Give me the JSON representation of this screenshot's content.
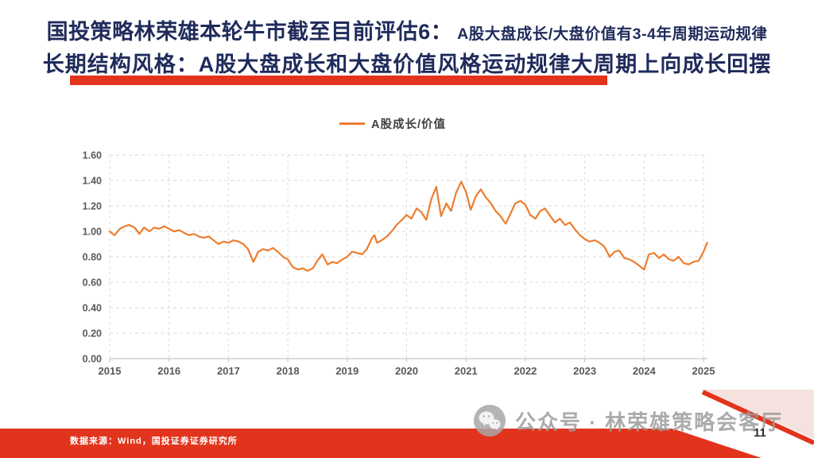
{
  "theme": {
    "title_color": "#1f2b5b",
    "accent_red": "#e2341d",
    "line_orange": "#ED7D31",
    "grid_gray": "#d8d8d8",
    "tick_gray": "#595959",
    "watermark_gray": "#9d9d9d",
    "pink_corner": "#f5e1dd"
  },
  "title": {
    "line1_main": "国投策略林荣雄本轮牛市截至目前评估6：",
    "line1_sub": "A股大盘成长/大盘价值有3-4年周期运动规律",
    "line2": "长期结构风格：A股大盘成长和大盘价值风格运动规律大周期上向成长回摆"
  },
  "legend": {
    "label": "A股成长/价值"
  },
  "chart_data": {
    "type": "line",
    "title": "",
    "xlabel": "",
    "ylabel": "",
    "legend": [
      "A股成长/价值"
    ],
    "legend_position": "top",
    "grid": "dashed",
    "xlim": [
      2015,
      2025.1
    ],
    "ylim": [
      0,
      1.6
    ],
    "x_ticks": [
      "2015",
      "2016",
      "2017",
      "2018",
      "2019",
      "2020",
      "2021",
      "2022",
      "2023",
      "2024",
      "2025"
    ],
    "y_ticks": [
      "0.00",
      "0.20",
      "0.40",
      "0.60",
      "0.80",
      "1.00",
      "1.20",
      "1.40",
      "1.60"
    ],
    "line_color": "#ED7D31",
    "series": [
      {
        "name": "A股成长/价值",
        "points": [
          [
            2015.0,
            1.0
          ],
          [
            2015.08,
            0.97
          ],
          [
            2015.17,
            1.02
          ],
          [
            2015.25,
            1.04
          ],
          [
            2015.33,
            1.05
          ],
          [
            2015.42,
            1.03
          ],
          [
            2015.5,
            0.98
          ],
          [
            2015.58,
            1.03
          ],
          [
            2015.67,
            1.0
          ],
          [
            2015.75,
            1.03
          ],
          [
            2015.83,
            1.02
          ],
          [
            2015.92,
            1.04
          ],
          [
            2016.0,
            1.02
          ],
          [
            2016.08,
            1.0
          ],
          [
            2016.17,
            1.01
          ],
          [
            2016.25,
            0.99
          ],
          [
            2016.33,
            0.97
          ],
          [
            2016.42,
            0.98
          ],
          [
            2016.5,
            0.96
          ],
          [
            2016.58,
            0.95
          ],
          [
            2016.67,
            0.96
          ],
          [
            2016.75,
            0.93
          ],
          [
            2016.83,
            0.9
          ],
          [
            2016.92,
            0.92
          ],
          [
            2017.0,
            0.91
          ],
          [
            2017.08,
            0.93
          ],
          [
            2017.17,
            0.92
          ],
          [
            2017.25,
            0.9
          ],
          [
            2017.33,
            0.86
          ],
          [
            2017.42,
            0.76
          ],
          [
            2017.5,
            0.84
          ],
          [
            2017.58,
            0.86
          ],
          [
            2017.67,
            0.85
          ],
          [
            2017.75,
            0.87
          ],
          [
            2017.83,
            0.84
          ],
          [
            2017.92,
            0.8
          ],
          [
            2018.0,
            0.78
          ],
          [
            2018.08,
            0.72
          ],
          [
            2018.17,
            0.7
          ],
          [
            2018.25,
            0.71
          ],
          [
            2018.33,
            0.69
          ],
          [
            2018.42,
            0.71
          ],
          [
            2018.5,
            0.77
          ],
          [
            2018.58,
            0.82
          ],
          [
            2018.67,
            0.74
          ],
          [
            2018.75,
            0.76
          ],
          [
            2018.83,
            0.75
          ],
          [
            2018.92,
            0.78
          ],
          [
            2019.0,
            0.8
          ],
          [
            2019.08,
            0.84
          ],
          [
            2019.17,
            0.83
          ],
          [
            2019.25,
            0.82
          ],
          [
            2019.33,
            0.86
          ],
          [
            2019.42,
            0.95
          ],
          [
            2019.46,
            0.97
          ],
          [
            2019.5,
            0.91
          ],
          [
            2019.58,
            0.93
          ],
          [
            2019.67,
            0.96
          ],
          [
            2019.75,
            1.0
          ],
          [
            2019.83,
            1.05
          ],
          [
            2019.92,
            1.09
          ],
          [
            2020.0,
            1.13
          ],
          [
            2020.08,
            1.1
          ],
          [
            2020.17,
            1.18
          ],
          [
            2020.25,
            1.15
          ],
          [
            2020.33,
            1.09
          ],
          [
            2020.42,
            1.26
          ],
          [
            2020.5,
            1.35
          ],
          [
            2020.58,
            1.12
          ],
          [
            2020.67,
            1.22
          ],
          [
            2020.75,
            1.16
          ],
          [
            2020.83,
            1.3
          ],
          [
            2020.92,
            1.39
          ],
          [
            2021.0,
            1.31
          ],
          [
            2021.08,
            1.17
          ],
          [
            2021.17,
            1.28
          ],
          [
            2021.25,
            1.33
          ],
          [
            2021.33,
            1.27
          ],
          [
            2021.42,
            1.22
          ],
          [
            2021.5,
            1.16
          ],
          [
            2021.58,
            1.12
          ],
          [
            2021.67,
            1.06
          ],
          [
            2021.75,
            1.14
          ],
          [
            2021.83,
            1.22
          ],
          [
            2021.92,
            1.24
          ],
          [
            2022.0,
            1.21
          ],
          [
            2022.08,
            1.13
          ],
          [
            2022.17,
            1.1
          ],
          [
            2022.25,
            1.16
          ],
          [
            2022.33,
            1.18
          ],
          [
            2022.42,
            1.12
          ],
          [
            2022.5,
            1.07
          ],
          [
            2022.58,
            1.1
          ],
          [
            2022.67,
            1.05
          ],
          [
            2022.75,
            1.07
          ],
          [
            2022.83,
            1.02
          ],
          [
            2022.92,
            0.97
          ],
          [
            2023.0,
            0.94
          ],
          [
            2023.08,
            0.92
          ],
          [
            2023.17,
            0.93
          ],
          [
            2023.25,
            0.91
          ],
          [
            2023.33,
            0.88
          ],
          [
            2023.42,
            0.8
          ],
          [
            2023.5,
            0.84
          ],
          [
            2023.58,
            0.85
          ],
          [
            2023.67,
            0.79
          ],
          [
            2023.75,
            0.78
          ],
          [
            2023.83,
            0.76
          ],
          [
            2023.92,
            0.73
          ],
          [
            2024.0,
            0.7
          ],
          [
            2024.08,
            0.82
          ],
          [
            2024.17,
            0.83
          ],
          [
            2024.25,
            0.79
          ],
          [
            2024.33,
            0.82
          ],
          [
            2024.42,
            0.78
          ],
          [
            2024.5,
            0.77
          ],
          [
            2024.58,
            0.8
          ],
          [
            2024.67,
            0.75
          ],
          [
            2024.75,
            0.74
          ],
          [
            2024.83,
            0.76
          ],
          [
            2024.92,
            0.77
          ],
          [
            2025.0,
            0.84
          ],
          [
            2025.06,
            0.91
          ]
        ]
      }
    ]
  },
  "footer": {
    "source": "数据来源：Wind，国投证券证券研究所",
    "watermark": "公众号 · 林荣雄策略会客厅",
    "page": "11"
  }
}
